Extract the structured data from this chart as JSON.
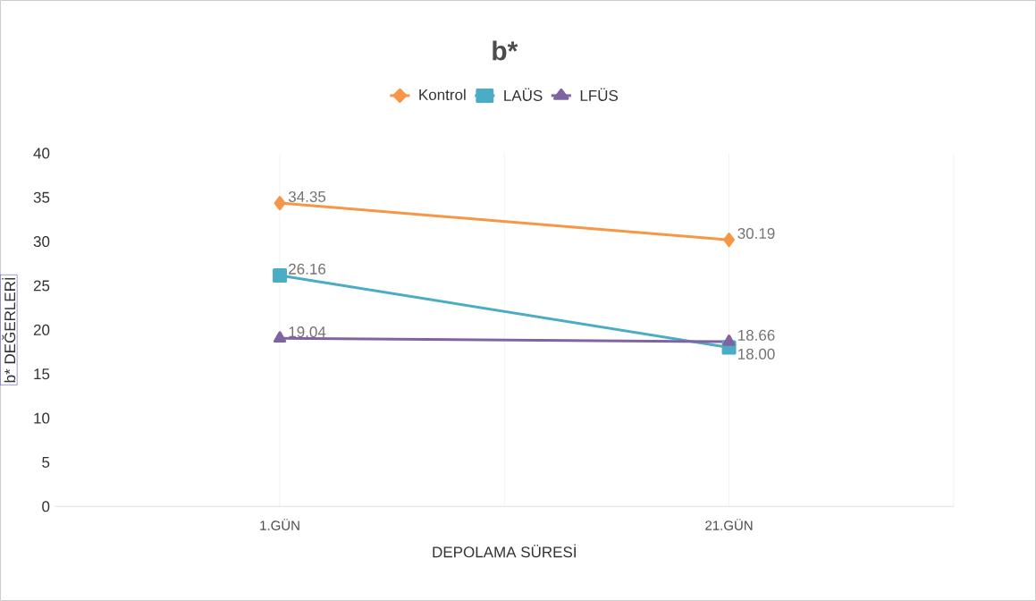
{
  "chart_data": {
    "type": "line",
    "title": "b*",
    "xlabel": "DEPOLAMA SÜRESİ",
    "ylabel": "b* DEĞERLERİ",
    "categories": [
      "1.GÜN",
      "21.GÜN"
    ],
    "series": [
      {
        "name": "Kontrol",
        "color": "#f79646",
        "marker": "diamond",
        "values": [
          34.35,
          30.19
        ],
        "value_labels": [
          "34.35",
          "30.19"
        ]
      },
      {
        "name": "LAÜS",
        "color": "#4bacc6",
        "marker": "square",
        "values": [
          26.16,
          18.0
        ],
        "value_labels": [
          "26.16",
          "18.00"
        ]
      },
      {
        "name": "LFÜS",
        "color": "#8064a2",
        "marker": "triangle",
        "values": [
          19.04,
          18.66
        ],
        "value_labels": [
          "19.04",
          "18.66"
        ]
      }
    ],
    "ylim": [
      0,
      40
    ],
    "yticks": [
      0,
      5,
      10,
      15,
      20,
      25,
      30,
      35,
      40
    ],
    "grid": "x",
    "legend": "top",
    "line_style": "solid"
  }
}
